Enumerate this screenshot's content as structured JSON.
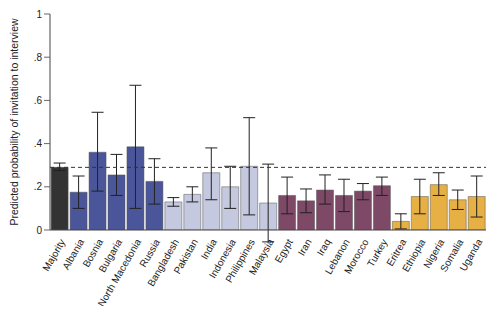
{
  "chart_data": {
    "type": "bar",
    "y_label": "Predicted probability of invitation to interview",
    "categories": [
      "Majority",
      "Albania",
      "Bosnia",
      "Bulgaria",
      "North Macedonia",
      "Russia",
      "Bangladesh",
      "Pakistan",
      "India",
      "Indonesia",
      "Philippines",
      "Malaysia",
      "Egypt",
      "Iran",
      "Iraq",
      "Lebanon",
      "Morocco",
      "Turkey",
      "Eritrea",
      "Ethiopia",
      "Nigeria",
      "Somalia",
      "Uganda"
    ],
    "values": [
      0.29,
      0.175,
      0.36,
      0.255,
      0.385,
      0.225,
      0.13,
      0.165,
      0.265,
      0.2,
      0.295,
      0.125,
      0.16,
      0.135,
      0.185,
      0.16,
      0.18,
      0.205,
      0.04,
      0.155,
      0.21,
      0.14,
      0.155
    ],
    "ci_low": [
      0.275,
      0.1,
      0.18,
      0.16,
      0.1,
      0.12,
      0.11,
      0.13,
      0.14,
      0.1,
      0.07,
      -0.055,
      0.075,
      0.08,
      0.12,
      0.085,
      0.14,
      0.16,
      0.005,
      0.075,
      0.16,
      0.095,
      0.06
    ],
    "ci_high": [
      0.31,
      0.25,
      0.545,
      0.35,
      0.67,
      0.33,
      0.15,
      0.2,
      0.38,
      0.295,
      0.52,
      0.305,
      0.245,
      0.19,
      0.255,
      0.235,
      0.215,
      0.245,
      0.075,
      0.235,
      0.265,
      0.185,
      0.25
    ],
    "colors": [
      "#333333",
      "#4a5699",
      "#4a5699",
      "#4a5699",
      "#4a5699",
      "#4a5699",
      "#c5c9e0",
      "#c5c9e0",
      "#c5c9e0",
      "#c5c9e0",
      "#c5c9e0",
      "#c5c9e0",
      "#7d4966",
      "#7d4966",
      "#7d4966",
      "#7d4966",
      "#7d4966",
      "#7d4966",
      "#e6b044",
      "#e6b044",
      "#e6b044",
      "#e6b044",
      "#e6b044"
    ],
    "reference_line": 0.29,
    "ylim": [
      0,
      1
    ],
    "yticks": [
      0,
      {
        "value": 0.2,
        "label": ".2"
      },
      {
        "value": 0.4,
        "label": ".4"
      },
      {
        "value": 0.6,
        "label": ".6"
      },
      {
        "value": 0.8,
        "label": ".8"
      },
      1
    ],
    "grid": false
  }
}
